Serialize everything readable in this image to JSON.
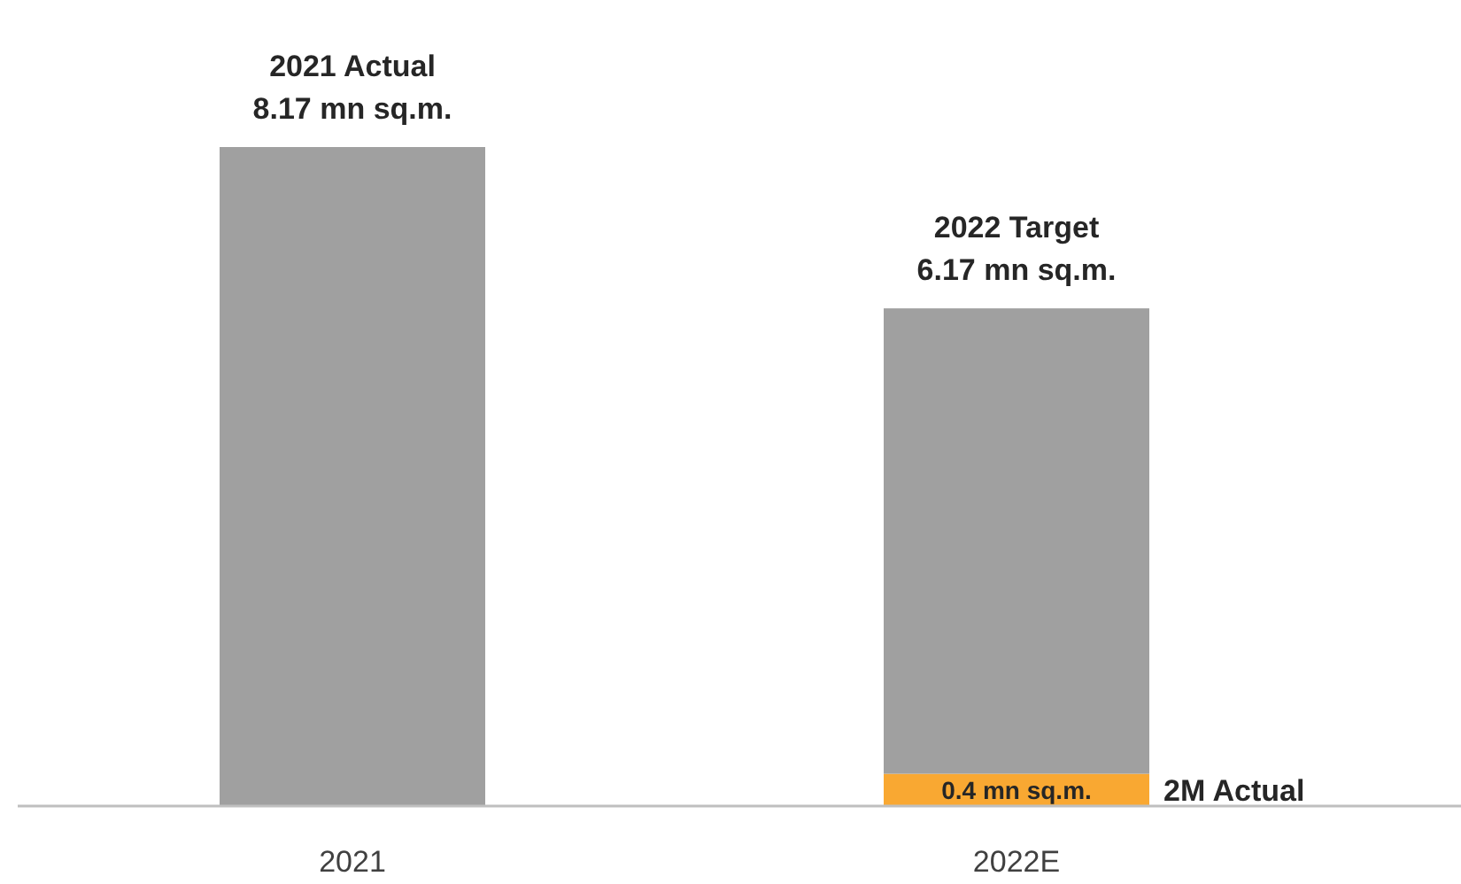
{
  "chart_data": {
    "type": "bar",
    "stacked": true,
    "categories": [
      "2021",
      "2022E"
    ],
    "series": [
      {
        "color": "#f9a832",
        "values": [
          null,
          0.4
        ],
        "value_labels": [
          null,
          "0.4 mn sq.m."
        ]
      },
      {
        "color": "#a0a0a0",
        "values": [
          8.17,
          5.77
        ]
      }
    ],
    "totals": [
      "8.17 mn sq.m.",
      "6.17 mn sq.m."
    ],
    "annotations": [
      {
        "text": "2021 Actual",
        "x": "2021",
        "y": 8.17
      },
      {
        "text": "2022 Target",
        "x": "2022E",
        "y": 6.17
      },
      "2M Actual"
    ]
  }
}
